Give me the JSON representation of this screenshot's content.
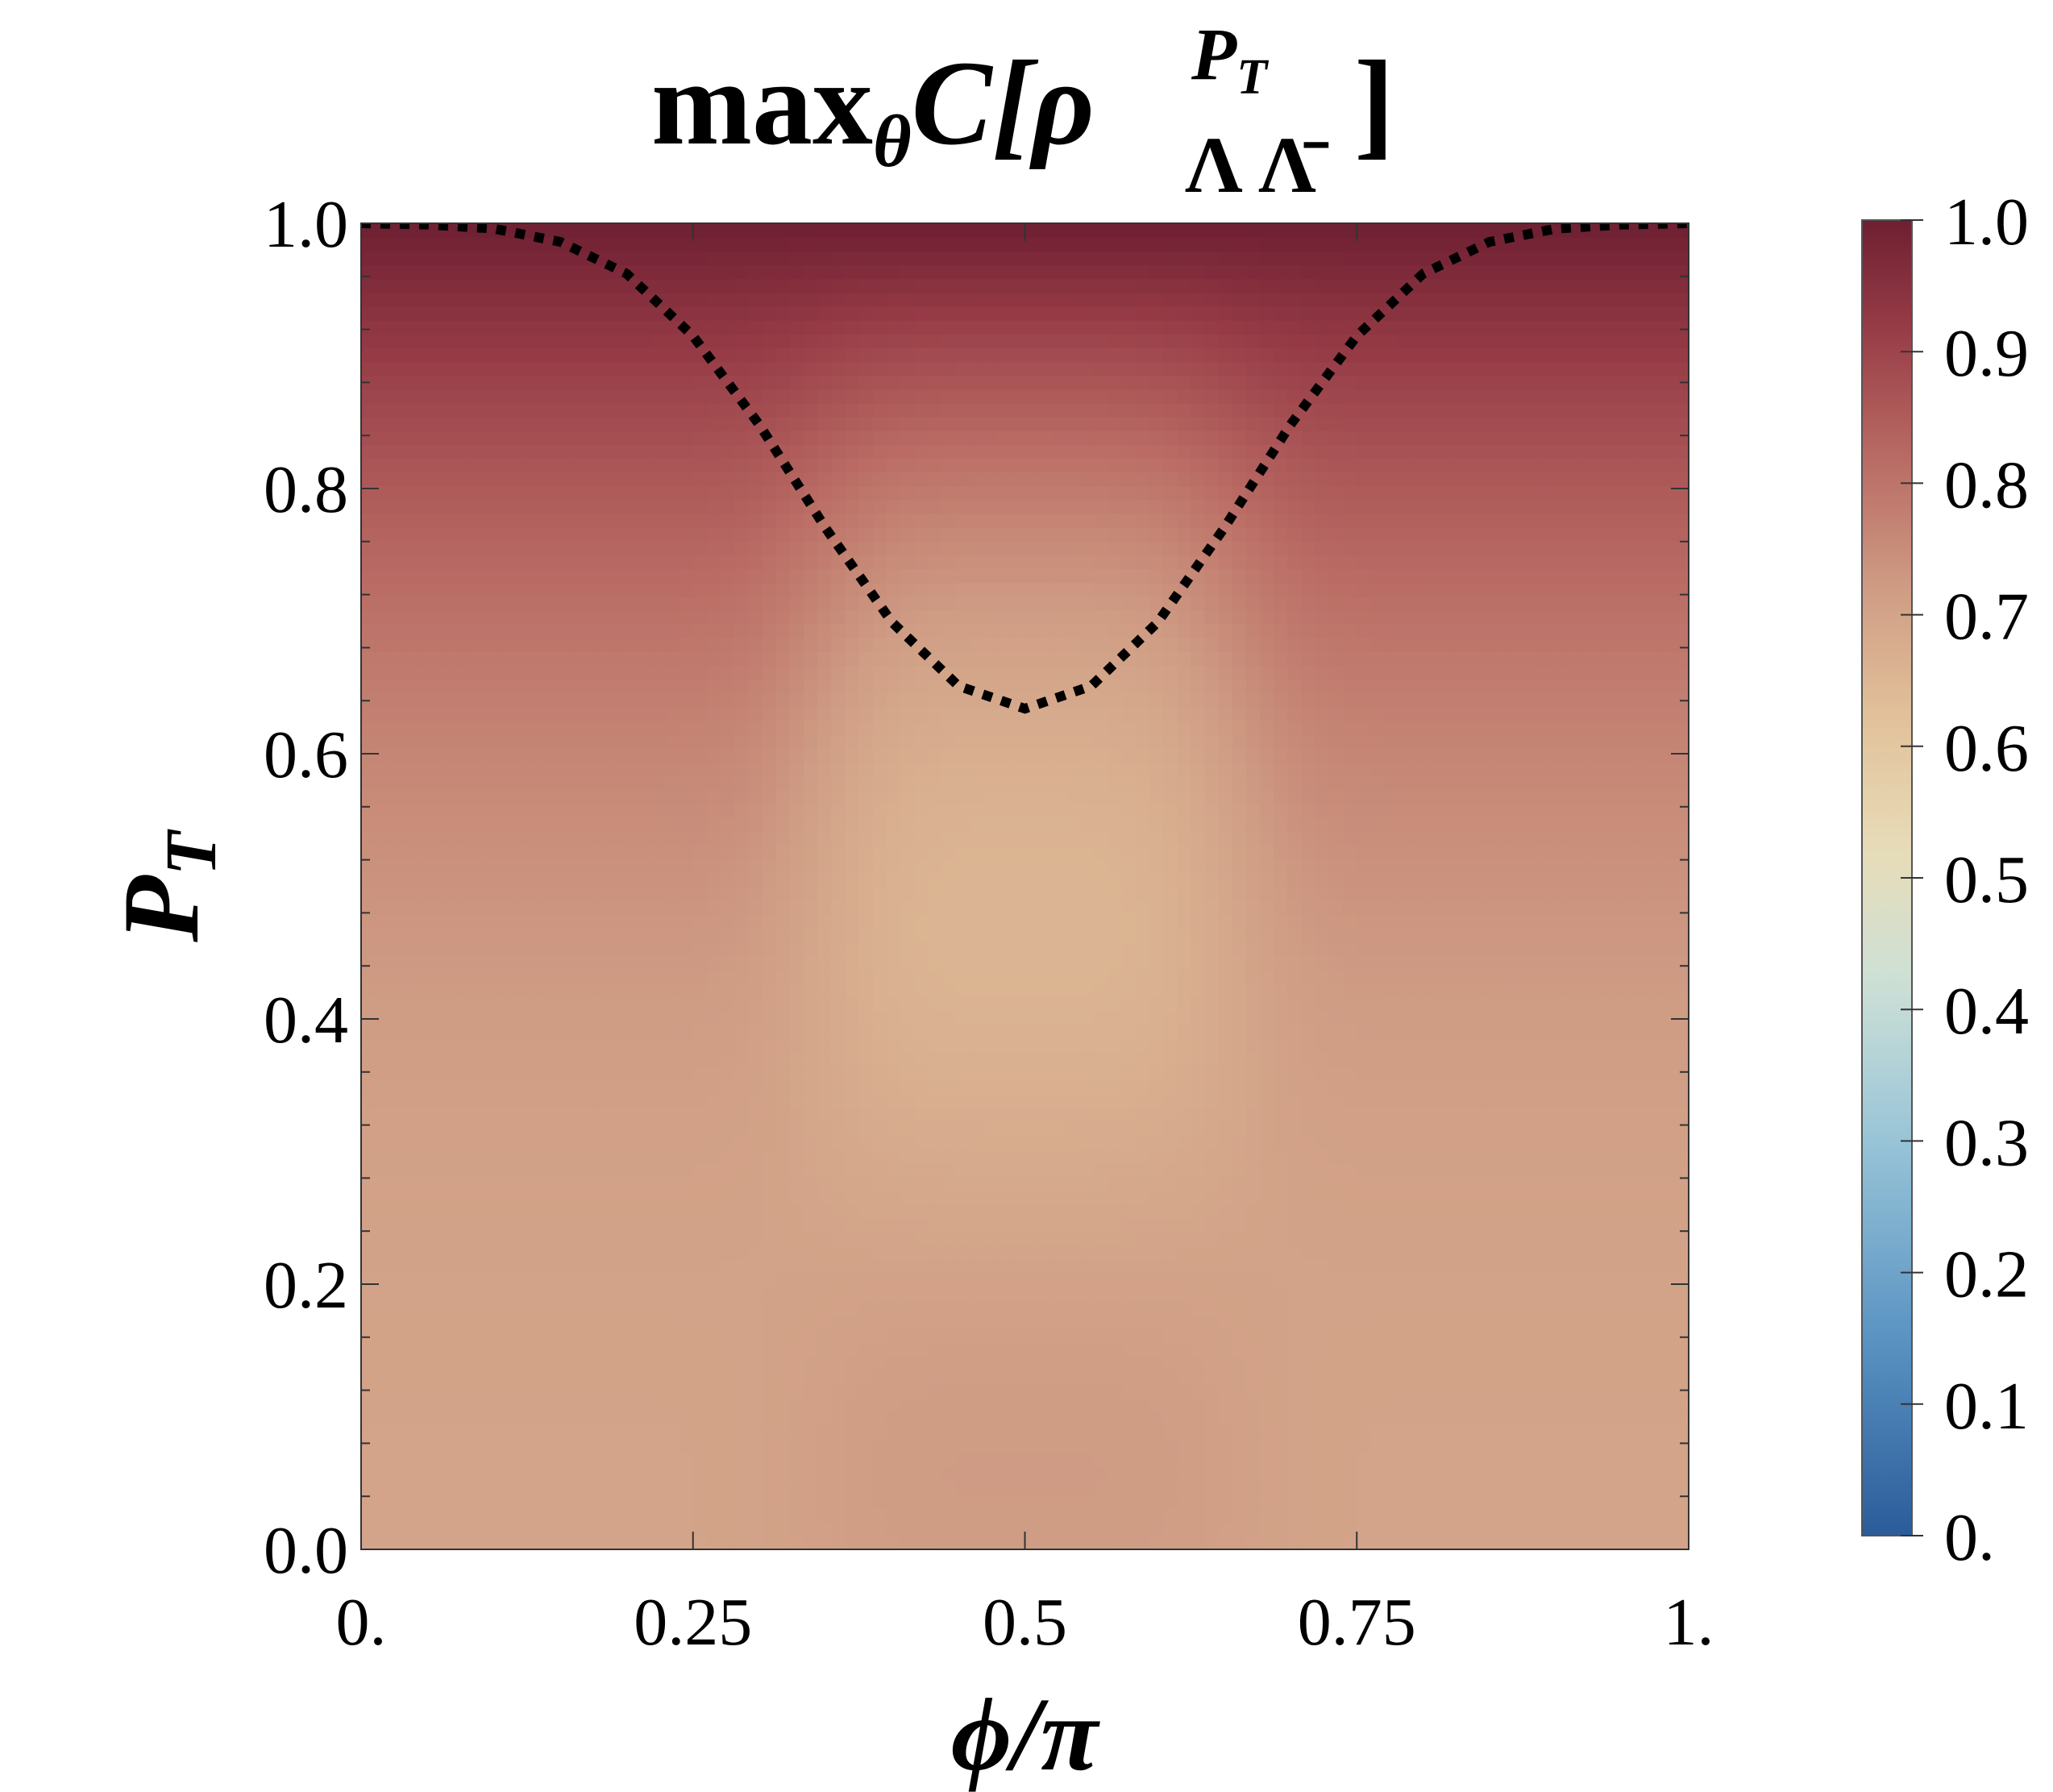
{
  "chart_data": {
    "type": "heatmap",
    "title": {
      "prefix": "max",
      "prefix_sub": "θ",
      "func": "C[",
      "rho": "ρ",
      "rho_sup_P": "P",
      "rho_sup_sub_T": "T",
      "rho_sub": "Λ Λ̄",
      "close": "]"
    },
    "xlabel": "ϕ/π",
    "ylabel": {
      "main": "P",
      "sub": "T"
    },
    "xlim": [
      0,
      1
    ],
    "ylim": [
      0,
      1
    ],
    "x_ticks": [
      {
        "value": 0,
        "label": "0."
      },
      {
        "value": 0.25,
        "label": "0.25"
      },
      {
        "value": 0.5,
        "label": "0.5"
      },
      {
        "value": 0.75,
        "label": "0.75"
      },
      {
        "value": 1,
        "label": "1."
      }
    ],
    "y_ticks": [
      {
        "value": 0,
        "label": "0.0"
      },
      {
        "value": 0.2,
        "label": "0.2"
      },
      {
        "value": 0.4,
        "label": "0.4"
      },
      {
        "value": 0.6,
        "label": "0.6"
      },
      {
        "value": 0.8,
        "label": "0.8"
      },
      {
        "value": 1,
        "label": "1.0"
      }
    ],
    "colorbar": {
      "range": [
        0,
        1
      ],
      "ticks": [
        {
          "value": 0,
          "label": "0."
        },
        {
          "value": 0.1,
          "label": "0.1"
        },
        {
          "value": 0.2,
          "label": "0.2"
        },
        {
          "value": 0.3,
          "label": "0.3"
        },
        {
          "value": 0.4,
          "label": "0.4"
        },
        {
          "value": 0.5,
          "label": "0.5"
        },
        {
          "value": 0.6,
          "label": "0.6"
        },
        {
          "value": 0.7,
          "label": "0.7"
        },
        {
          "value": 0.8,
          "label": "0.8"
        },
        {
          "value": 0.9,
          "label": "0.9"
        },
        {
          "value": 1,
          "label": "1.0"
        }
      ],
      "colormap_stops": [
        {
          "v": 0.0,
          "color": "#2b5c9a"
        },
        {
          "v": 0.15,
          "color": "#5a93c2"
        },
        {
          "v": 0.3,
          "color": "#98c4d7"
        },
        {
          "v": 0.42,
          "color": "#cde0d6"
        },
        {
          "v": 0.52,
          "color": "#e7dcb8"
        },
        {
          "v": 0.62,
          "color": "#e2c29b"
        },
        {
          "v": 0.72,
          "color": "#cf9c84"
        },
        {
          "v": 0.82,
          "color": "#b96a63"
        },
        {
          "v": 0.92,
          "color": "#963b46"
        },
        {
          "v": 1.0,
          "color": "#6e1f32"
        }
      ]
    },
    "dotted_boundary": {
      "x": [
        0,
        0.05,
        0.1,
        0.15,
        0.2,
        0.25,
        0.3,
        0.35,
        0.4,
        0.45,
        0.5,
        0.55,
        0.6,
        0.65,
        0.7,
        0.75,
        0.8,
        0.85,
        0.9,
        0.95,
        1
      ],
      "y": [
        1.0,
        0.999,
        0.996,
        0.986,
        0.962,
        0.915,
        0.848,
        0.77,
        0.699,
        0.651,
        0.634,
        0.651,
        0.699,
        0.77,
        0.848,
        0.915,
        0.962,
        0.986,
        0.996,
        0.999,
        1.0
      ]
    }
  }
}
